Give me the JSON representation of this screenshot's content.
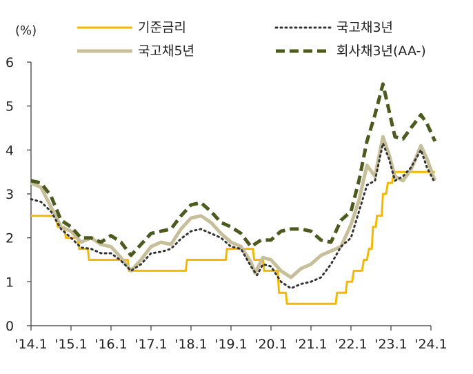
{
  "chart_data": {
    "type": "line",
    "unit_label": "(%)",
    "xlabel": "",
    "ylabel": "",
    "ylim": [
      0,
      6
    ],
    "yticks": [
      "0",
      "1",
      "2",
      "3",
      "4",
      "5",
      "6"
    ],
    "xticks": [
      "'14.1",
      "'15.1",
      "'16.1",
      "'17.1",
      "'18.1",
      "'19.1",
      "'20.1",
      "'21.1",
      "'22.1",
      "'23.1",
      "'24.1"
    ],
    "x_range": [
      2014.0,
      2024.0
    ],
    "grid": false,
    "legend_position": "top",
    "series": [
      {
        "name": "기준금리",
        "color": "#F5B800",
        "style": "solid",
        "points": [
          [
            2014.0,
            2.5
          ],
          [
            2014.6,
            2.5
          ],
          [
            2014.67,
            2.25
          ],
          [
            2014.83,
            2.25
          ],
          [
            2014.87,
            2.0
          ],
          [
            2015.17,
            2.0
          ],
          [
            2015.2,
            1.75
          ],
          [
            2015.42,
            1.75
          ],
          [
            2015.45,
            1.5
          ],
          [
            2016.42,
            1.5
          ],
          [
            2016.45,
            1.25
          ],
          [
            2017.87,
            1.25
          ],
          [
            2017.9,
            1.5
          ],
          [
            2018.87,
            1.5
          ],
          [
            2018.9,
            1.75
          ],
          [
            2019.55,
            1.75
          ],
          [
            2019.58,
            1.5
          ],
          [
            2019.8,
            1.5
          ],
          [
            2019.83,
            1.25
          ],
          [
            2020.17,
            1.25
          ],
          [
            2020.2,
            0.75
          ],
          [
            2020.37,
            0.75
          ],
          [
            2020.4,
            0.5
          ],
          [
            2021.62,
            0.5
          ],
          [
            2021.65,
            0.75
          ],
          [
            2021.87,
            0.75
          ],
          [
            2021.9,
            1.0
          ],
          [
            2022.03,
            1.0
          ],
          [
            2022.07,
            1.25
          ],
          [
            2022.28,
            1.25
          ],
          [
            2022.32,
            1.5
          ],
          [
            2022.4,
            1.5
          ],
          [
            2022.45,
            1.75
          ],
          [
            2022.52,
            1.75
          ],
          [
            2022.55,
            2.25
          ],
          [
            2022.62,
            2.25
          ],
          [
            2022.65,
            2.5
          ],
          [
            2022.77,
            2.5
          ],
          [
            2022.8,
            3.0
          ],
          [
            2022.88,
            3.0
          ],
          [
            2022.92,
            3.25
          ],
          [
            2023.03,
            3.25
          ],
          [
            2023.07,
            3.5
          ],
          [
            2024.1,
            3.5
          ]
        ]
      },
      {
        "name": "국고채3년",
        "color": "#333333",
        "style": "dotted",
        "points": [
          [
            2014.0,
            2.88
          ],
          [
            2014.25,
            2.82
          ],
          [
            2014.5,
            2.6
          ],
          [
            2014.75,
            2.2
          ],
          [
            2015.0,
            2.0
          ],
          [
            2015.25,
            1.78
          ],
          [
            2015.5,
            1.75
          ],
          [
            2015.75,
            1.65
          ],
          [
            2016.0,
            1.65
          ],
          [
            2016.25,
            1.48
          ],
          [
            2016.5,
            1.25
          ],
          [
            2016.75,
            1.4
          ],
          [
            2017.0,
            1.65
          ],
          [
            2017.25,
            1.68
          ],
          [
            2017.5,
            1.75
          ],
          [
            2017.75,
            1.98
          ],
          [
            2018.0,
            2.15
          ],
          [
            2018.25,
            2.2
          ],
          [
            2018.5,
            2.1
          ],
          [
            2018.75,
            2.0
          ],
          [
            2019.0,
            1.8
          ],
          [
            2019.25,
            1.75
          ],
          [
            2019.5,
            1.35
          ],
          [
            2019.65,
            1.15
          ],
          [
            2019.8,
            1.4
          ],
          [
            2020.0,
            1.35
          ],
          [
            2020.25,
            1.0
          ],
          [
            2020.5,
            0.85
          ],
          [
            2020.75,
            0.95
          ],
          [
            2021.0,
            1.0
          ],
          [
            2021.25,
            1.1
          ],
          [
            2021.5,
            1.4
          ],
          [
            2021.75,
            1.8
          ],
          [
            2022.0,
            2.0
          ],
          [
            2022.2,
            2.6
          ],
          [
            2022.4,
            3.2
          ],
          [
            2022.6,
            3.3
          ],
          [
            2022.8,
            4.15
          ],
          [
            2022.95,
            3.8
          ],
          [
            2023.1,
            3.3
          ],
          [
            2023.3,
            3.4
          ],
          [
            2023.5,
            3.6
          ],
          [
            2023.75,
            4.0
          ],
          [
            2023.9,
            3.6
          ],
          [
            2024.1,
            3.25
          ]
        ]
      },
      {
        "name": "국고채5년",
        "color": "#C7BE9A",
        "style": "solid",
        "points": [
          [
            2014.0,
            3.25
          ],
          [
            2014.25,
            3.15
          ],
          [
            2014.5,
            2.7
          ],
          [
            2014.75,
            2.25
          ],
          [
            2015.0,
            2.15
          ],
          [
            2015.25,
            1.9
          ],
          [
            2015.5,
            2.0
          ],
          [
            2015.75,
            1.85
          ],
          [
            2016.0,
            1.8
          ],
          [
            2016.25,
            1.55
          ],
          [
            2016.5,
            1.25
          ],
          [
            2016.75,
            1.5
          ],
          [
            2017.0,
            1.8
          ],
          [
            2017.25,
            1.9
          ],
          [
            2017.5,
            1.85
          ],
          [
            2017.75,
            2.2
          ],
          [
            2018.0,
            2.45
          ],
          [
            2018.25,
            2.5
          ],
          [
            2018.5,
            2.35
          ],
          [
            2018.75,
            2.1
          ],
          [
            2019.0,
            1.9
          ],
          [
            2019.25,
            1.8
          ],
          [
            2019.5,
            1.45
          ],
          [
            2019.6,
            1.2
          ],
          [
            2019.8,
            1.55
          ],
          [
            2020.0,
            1.5
          ],
          [
            2020.25,
            1.25
          ],
          [
            2020.5,
            1.1
          ],
          [
            2020.75,
            1.3
          ],
          [
            2021.0,
            1.4
          ],
          [
            2021.25,
            1.6
          ],
          [
            2021.5,
            1.7
          ],
          [
            2021.75,
            1.8
          ],
          [
            2022.0,
            2.3
          ],
          [
            2022.2,
            2.85
          ],
          [
            2022.4,
            3.65
          ],
          [
            2022.6,
            3.4
          ],
          [
            2022.8,
            4.3
          ],
          [
            2022.95,
            3.9
          ],
          [
            2023.1,
            3.4
          ],
          [
            2023.3,
            3.3
          ],
          [
            2023.5,
            3.55
          ],
          [
            2023.75,
            4.1
          ],
          [
            2023.9,
            3.8
          ],
          [
            2024.1,
            3.3
          ]
        ]
      },
      {
        "name": "회사채3년(AA-)",
        "color": "#4B5A1E",
        "style": "dashed",
        "points": [
          [
            2014.0,
            3.3
          ],
          [
            2014.25,
            3.25
          ],
          [
            2014.5,
            2.95
          ],
          [
            2014.75,
            2.4
          ],
          [
            2015.0,
            2.25
          ],
          [
            2015.25,
            2.0
          ],
          [
            2015.5,
            2.0
          ],
          [
            2015.75,
            1.9
          ],
          [
            2016.0,
            2.05
          ],
          [
            2016.25,
            1.9
          ],
          [
            2016.5,
            1.6
          ],
          [
            2016.75,
            1.85
          ],
          [
            2017.0,
            2.1
          ],
          [
            2017.25,
            2.15
          ],
          [
            2017.5,
            2.2
          ],
          [
            2017.75,
            2.5
          ],
          [
            2018.0,
            2.75
          ],
          [
            2018.25,
            2.8
          ],
          [
            2018.5,
            2.6
          ],
          [
            2018.75,
            2.35
          ],
          [
            2019.0,
            2.25
          ],
          [
            2019.25,
            2.1
          ],
          [
            2019.5,
            1.8
          ],
          [
            2019.75,
            1.95
          ],
          [
            2020.0,
            1.95
          ],
          [
            2020.25,
            2.15
          ],
          [
            2020.5,
            2.2
          ],
          [
            2020.75,
            2.2
          ],
          [
            2021.0,
            2.15
          ],
          [
            2021.25,
            1.95
          ],
          [
            2021.5,
            1.9
          ],
          [
            2021.75,
            2.4
          ],
          [
            2022.0,
            2.6
          ],
          [
            2022.2,
            3.3
          ],
          [
            2022.4,
            4.2
          ],
          [
            2022.6,
            4.8
          ],
          [
            2022.8,
            5.5
          ],
          [
            2022.95,
            4.9
          ],
          [
            2023.1,
            4.3
          ],
          [
            2023.3,
            4.25
          ],
          [
            2023.5,
            4.5
          ],
          [
            2023.75,
            4.8
          ],
          [
            2023.9,
            4.6
          ],
          [
            2024.1,
            4.2
          ]
        ]
      }
    ],
    "legend": [
      {
        "name": "기준금리",
        "color": "#F5B800",
        "style": "solid"
      },
      {
        "name": "국고채3년",
        "color": "#333333",
        "style": "dotted"
      },
      {
        "name": "국고채5년",
        "color": "#C7BE9A",
        "style": "solid"
      },
      {
        "name": "회사채3년(AA-)",
        "color": "#4B5A1E",
        "style": "dashed"
      }
    ]
  }
}
